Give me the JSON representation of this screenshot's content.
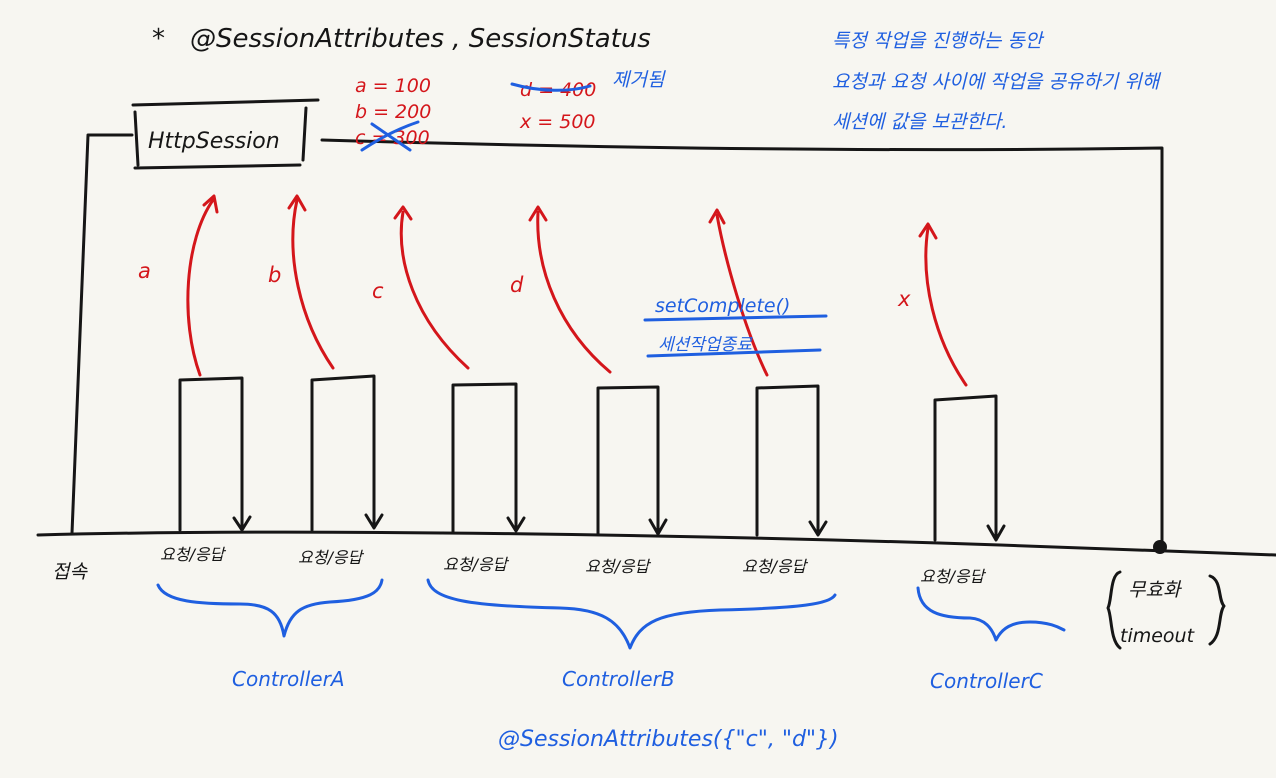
{
  "heading": {
    "star": "*",
    "text": "@SessionAttributes , SessionStatus"
  },
  "session_box": {
    "label": "HttpSession"
  },
  "session_values": [
    {
      "text": "a = 100",
      "struck": false
    },
    {
      "text": "b = 200",
      "struck": false
    },
    {
      "text": "c = 300",
      "struck": true
    },
    {
      "text": "d = 400",
      "struck": true
    },
    {
      "text": "x = 500",
      "struck": false
    }
  ],
  "removed_note": "제거됨",
  "blue_note": [
    "특정 작업을 진행하는 동안",
    "요청과 요청 사이에 작업을 공유하기 위해",
    "세션에 값을 보관한다."
  ],
  "arrow_labels": [
    "a",
    "b",
    "c",
    "d",
    "x"
  ],
  "complete_note": {
    "method": "setComplete()",
    "desc": "세션작업종료"
  },
  "timeline": {
    "start_label": "접속",
    "request_label": "요청/응답",
    "end_label_1": "무효화",
    "end_label_2": "timeout"
  },
  "controllers": [
    {
      "name": "ControllerA"
    },
    {
      "name": "ControllerB"
    },
    {
      "name": "ControllerC"
    }
  ],
  "controller_b_annotation": "@SessionAttributes({\"c\", \"d\"})"
}
